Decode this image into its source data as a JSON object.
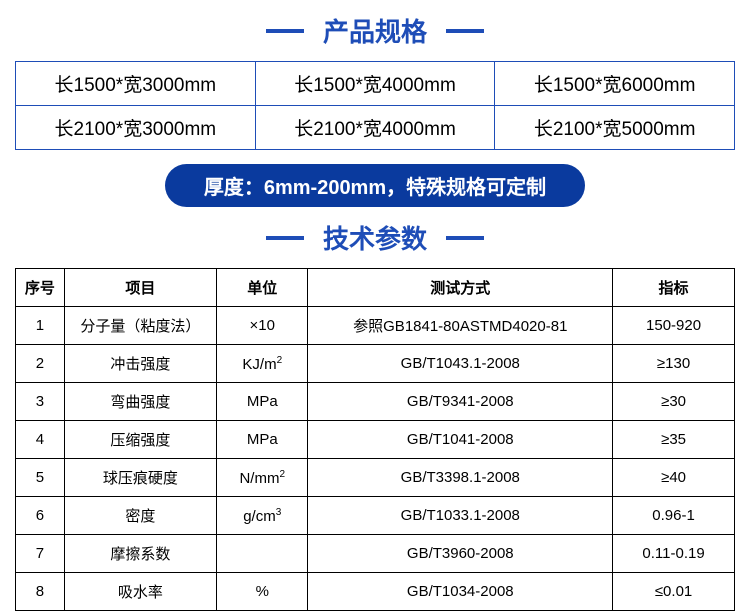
{
  "section1": {
    "title": "产品规格",
    "title_color": "#1e4db7",
    "title_fontsize": 26,
    "bar_color": "#1e4db7",
    "spec_table": {
      "border_color": "#1e4db7",
      "text_color": "#000000",
      "cell_fontsize": 19,
      "columns": 3,
      "rows": [
        [
          "长1500*宽3000mm",
          "长1500*宽4000mm",
          "长1500*宽6000mm"
        ],
        [
          "长2100*宽3000mm",
          "长2100*宽4000mm",
          "长2100*宽5000mm"
        ]
      ]
    },
    "thickness": {
      "text": "厚度：6mm-200mm，特殊规格可定制",
      "background_color": "#0a3a9e",
      "text_color": "#ffffff",
      "fontsize": 20,
      "border_radius": 24
    }
  },
  "section2": {
    "title": "技术参数",
    "title_color": "#1e4db7",
    "title_fontsize": 26,
    "bar_color": "#1e4db7",
    "params_table": {
      "border_color": "#000000",
      "text_color": "#000000",
      "fontsize": 15,
      "header": {
        "idx": "序号",
        "item": "项目",
        "unit": "单位",
        "test": "测试方式",
        "val": "指标"
      },
      "col_widths": {
        "idx": 48,
        "item": 150,
        "unit": 90,
        "test": 300,
        "val": 120
      },
      "rows": [
        {
          "idx": "1",
          "item": "分子量（粘度法）",
          "unit_html": "×10",
          "test": "参照GB1841-80ASTMD4020-81",
          "val": "150-920"
        },
        {
          "idx": "2",
          "item": "冲击强度",
          "unit_html": "KJ/m<sup>2</sup>",
          "test": "GB/T1043.1-2008",
          "val": "≥130"
        },
        {
          "idx": "3",
          "item": "弯曲强度",
          "unit_html": "MPa",
          "test": "GB/T9341-2008",
          "val": "≥30"
        },
        {
          "idx": "4",
          "item": "压缩强度",
          "unit_html": "MPa",
          "test": "GB/T1041-2008",
          "val": "≥35"
        },
        {
          "idx": "5",
          "item": "球压痕硬度",
          "unit_html": "N/mm<sup>2</sup>",
          "test": "GB/T3398.1-2008",
          "val": "≥40"
        },
        {
          "idx": "6",
          "item": "密度",
          "unit_html": "g/cm<sup>3</sup>",
          "test": "GB/T1033.1-2008",
          "val": "0.96-1"
        },
        {
          "idx": "7",
          "item": "摩擦系数",
          "unit_html": "",
          "test": "GB/T3960-2008",
          "val": "0.11-0.19"
        },
        {
          "idx": "8",
          "item": "吸水率",
          "unit_html": "%",
          "test": "GB/T1034-2008",
          "val": "≤0.01"
        }
      ]
    }
  }
}
